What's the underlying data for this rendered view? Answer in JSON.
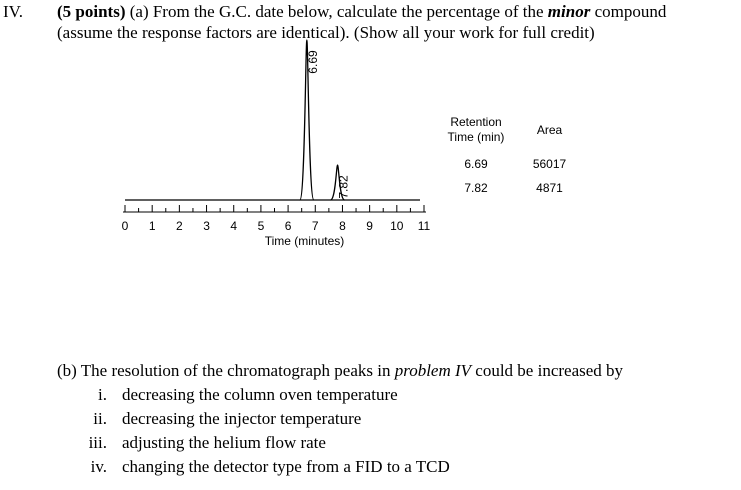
{
  "question": {
    "number": "IV.",
    "points": "(5 points)",
    "text_a1": " (a) From the G.C. date below, calculate the percentage of the ",
    "minor": "minor",
    "text_a2": " compound",
    "line2": "(assume the response factors are identical).  (Show all your work for full credit)"
  },
  "chart_data": {
    "type": "chromatogram",
    "x": [
      6.69,
      7.82
    ],
    "xlabel": "Time (minutes)",
    "xlim": [
      0,
      11
    ],
    "xticks": [
      0,
      1,
      2,
      3,
      4,
      5,
      6,
      7,
      8,
      9,
      10,
      11
    ]
  },
  "table": {
    "header": [
      "Retention Time (min)",
      "Area"
    ],
    "rows": [
      [
        6.69,
        56017
      ],
      [
        7.82,
        4871
      ]
    ]
  },
  "part_b": {
    "intro1": "(b) The resolution of the chromatograph peaks in ",
    "intro_em": "problem IV",
    "intro2": " could be increased by",
    "items": [
      {
        "num": "i.",
        "text": "decreasing the column oven temperature"
      },
      {
        "num": "ii.",
        "text": "decreasing the injector temperature"
      },
      {
        "num": "iii.",
        "text": "adjusting the helium flow rate"
      },
      {
        "num": "iv.",
        "text": "changing the detector type from a FID to a TCD"
      }
    ]
  }
}
